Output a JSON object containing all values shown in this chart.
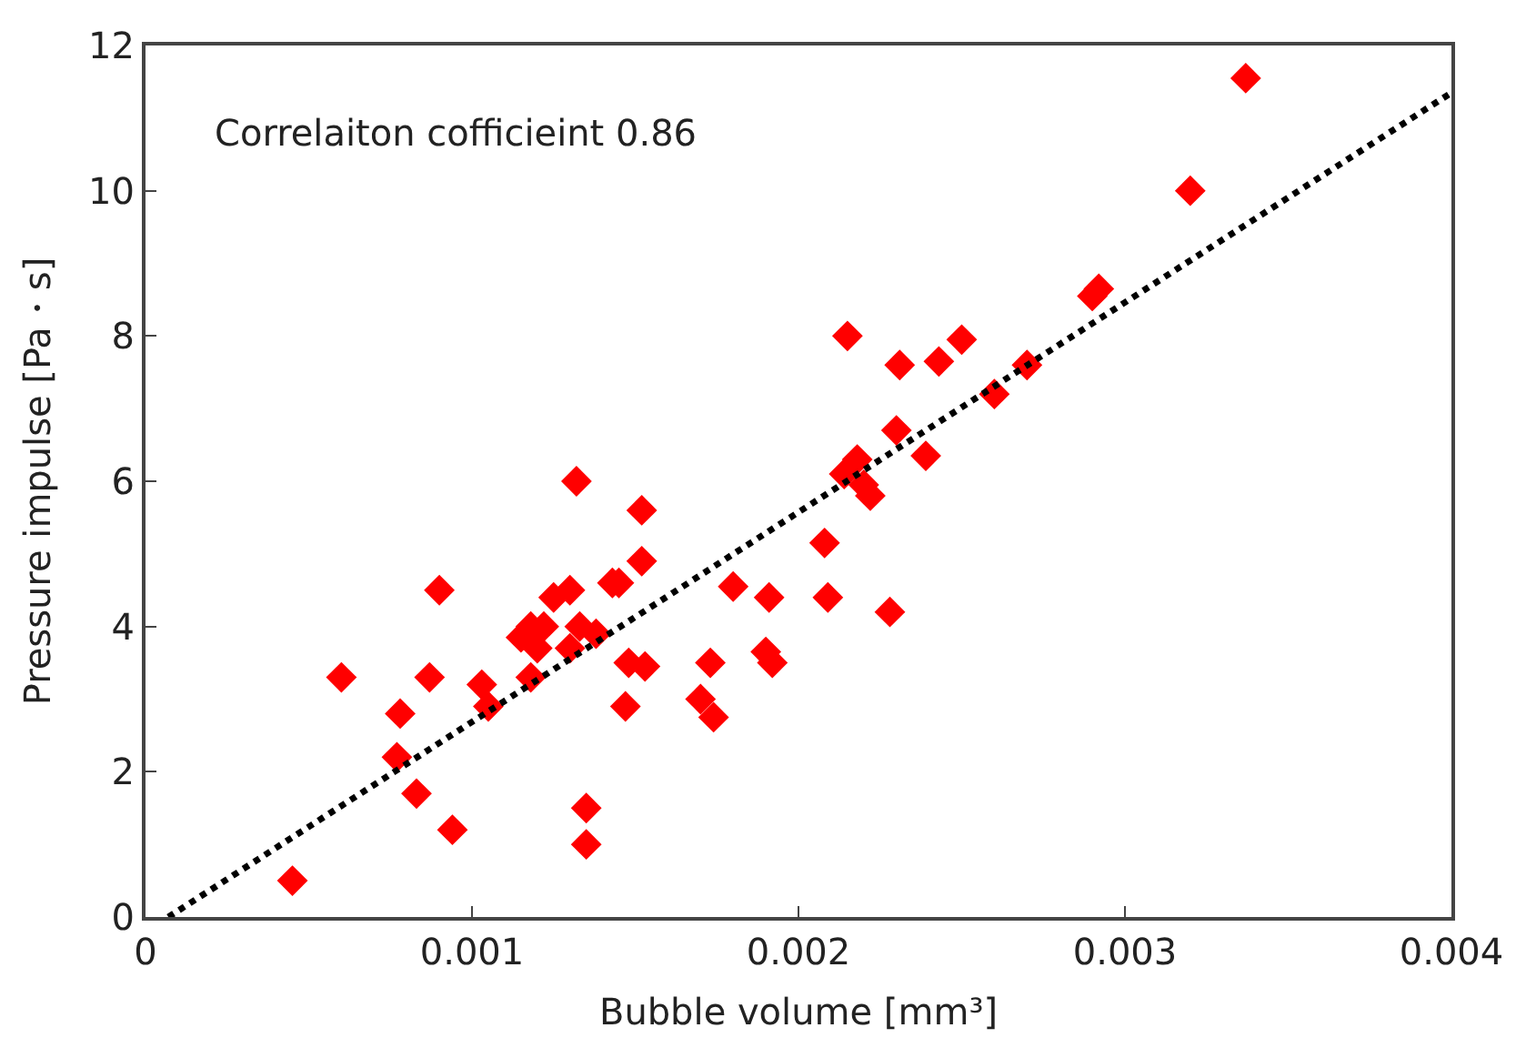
{
  "chart_data": {
    "type": "scatter",
    "xlabel": "Bubble volume [mm³]",
    "ylabel": "Pressure impulse [Pa・s]",
    "annotations": [
      "Correlaiton cofficieint 0.86"
    ],
    "xlim": [
      0,
      0.004
    ],
    "xticks": [
      0,
      0.001,
      0.002,
      0.003,
      0.004
    ],
    "ylim": [
      0,
      12
    ],
    "yticks": [
      0,
      2,
      4,
      6,
      8,
      10,
      12
    ],
    "marker": "diamond",
    "series": [
      {
        "color": "#ff0000",
        "x": [
          0.00045,
          0.0006,
          0.00077,
          0.00078,
          0.00083,
          0.00087,
          0.0009,
          0.00094,
          0.00103,
          0.00105,
          0.00115,
          0.00118,
          0.00118,
          0.0012,
          0.00122,
          0.00125,
          0.0013,
          0.0013,
          0.00132,
          0.00133,
          0.00135,
          0.00135,
          0.00138,
          0.00143,
          0.00145,
          0.00147,
          0.00148,
          0.00152,
          0.00152,
          0.00153,
          0.0017,
          0.00173,
          0.00174,
          0.0018,
          0.0019,
          0.00191,
          0.00192,
          0.00208,
          0.00209,
          0.00214,
          0.00215,
          0.00218,
          0.0022,
          0.00222,
          0.00228,
          0.0023,
          0.00231,
          0.00239,
          0.00243,
          0.0025,
          0.0026,
          0.0027,
          0.0029,
          0.00292,
          0.0032,
          0.00337
        ],
        "values": [
          0.5,
          3.3,
          2.2,
          2.8,
          1.7,
          3.3,
          4.5,
          1.2,
          3.2,
          2.9,
          3.85,
          4.0,
          3.3,
          3.7,
          4.0,
          4.4,
          4.5,
          3.7,
          6.0,
          4.0,
          1.5,
          1.0,
          3.9,
          4.6,
          4.6,
          2.9,
          3.5,
          5.6,
          4.9,
          3.45,
          3.0,
          3.5,
          2.75,
          4.55,
          3.65,
          4.4,
          3.5,
          5.15,
          4.4,
          6.1,
          8.0,
          6.3,
          5.95,
          5.8,
          4.2,
          6.7,
          7.6,
          6.35,
          7.65,
          7.95,
          7.2,
          7.6,
          8.55,
          8.65,
          10.0,
          11.55
        ]
      },
      {
        "type": "line",
        "color": "#000000",
        "line_style": "dotted",
        "marker": "none",
        "x": [
          7e-05,
          0.004
        ],
        "values": [
          0,
          11.35
        ]
      }
    ]
  }
}
